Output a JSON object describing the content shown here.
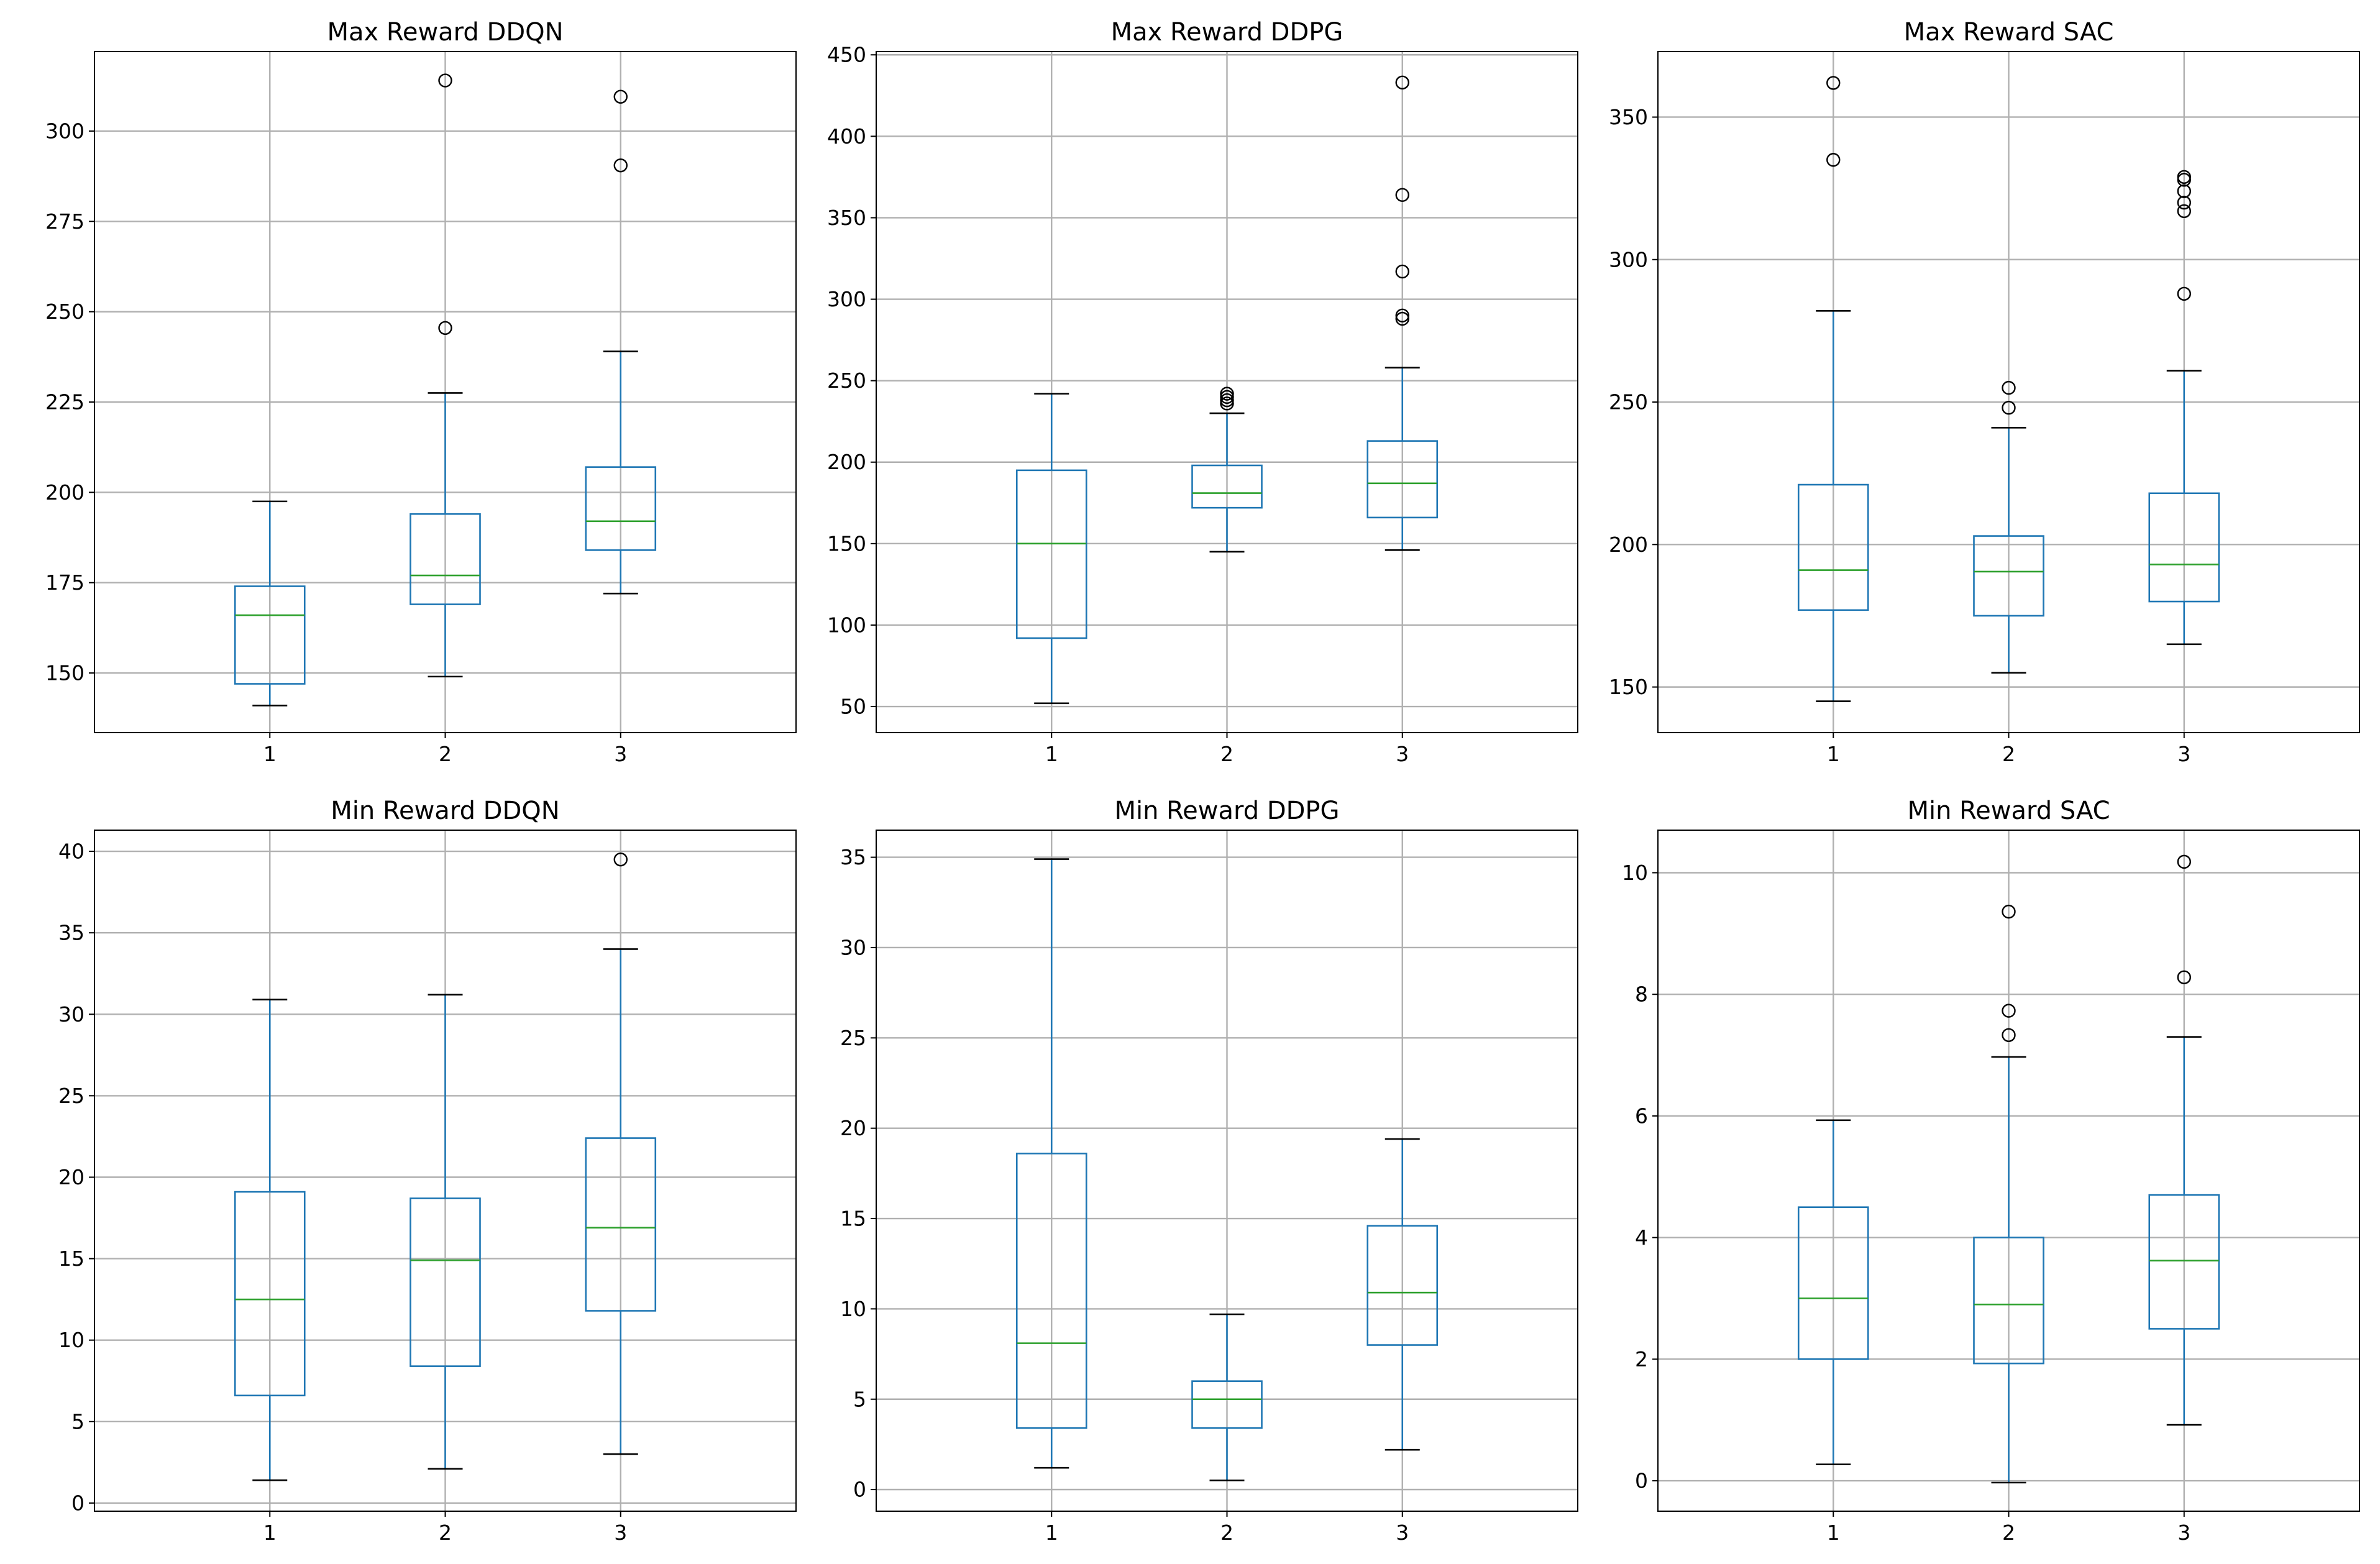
{
  "colors": {
    "box": "#1f77b4",
    "median": "#2ca02c",
    "whisker_cap": "#000000",
    "outlier": "#000000",
    "grid": "#b0b0b0",
    "background": "#ffffff"
  },
  "chart_data": [
    {
      "type": "box",
      "title": "Max Reward DDQN",
      "categories": [
        "1",
        "2",
        "3"
      ],
      "ylim": [
        133.5,
        322
      ],
      "yticks": [
        150,
        175,
        200,
        225,
        250,
        275,
        300
      ],
      "boxes": [
        {
          "label": "1",
          "whislo": 141,
          "q1": 147,
          "med": 166,
          "q3": 174,
          "whishi": 197.5,
          "fliers": []
        },
        {
          "label": "2",
          "whislo": 149,
          "q1": 169,
          "med": 177,
          "q3": 194,
          "whishi": 227.5,
          "fliers": [
            245.5,
            314
          ]
        },
        {
          "label": "3",
          "whislo": 172,
          "q1": 184,
          "med": 192,
          "q3": 207,
          "whishi": 239,
          "fliers": [
            290.5,
            309.5
          ]
        }
      ]
    },
    {
      "type": "box",
      "title": "Max Reward DDPG",
      "categories": [
        "1",
        "2",
        "3"
      ],
      "ylim": [
        34,
        452
      ],
      "yticks": [
        50,
        100,
        150,
        200,
        250,
        300,
        350,
        400,
        450
      ],
      "boxes": [
        {
          "label": "1",
          "whislo": 52,
          "q1": 92,
          "med": 150,
          "q3": 195,
          "whishi": 242,
          "fliers": []
        },
        {
          "label": "2",
          "whislo": 145,
          "q1": 172,
          "med": 181,
          "q3": 198,
          "whishi": 230,
          "fliers": [
            236,
            238,
            240,
            242
          ]
        },
        {
          "label": "3",
          "whislo": 146,
          "q1": 166,
          "med": 187,
          "q3": 213,
          "whishi": 258,
          "fliers": [
            288,
            290,
            317,
            364,
            433
          ]
        }
      ]
    },
    {
      "type": "box",
      "title": "Max Reward SAC",
      "categories": [
        "1",
        "2",
        "3"
      ],
      "ylim": [
        134,
        373
      ],
      "yticks": [
        150,
        200,
        250,
        300,
        350
      ],
      "boxes": [
        {
          "label": "1",
          "whislo": 145,
          "q1": 177,
          "med": 191,
          "q3": 221,
          "whishi": 282,
          "fliers": [
            335,
            362
          ]
        },
        {
          "label": "2",
          "whislo": 155,
          "q1": 175,
          "med": 190.5,
          "q3": 203,
          "whishi": 241,
          "fliers": [
            248,
            255
          ]
        },
        {
          "label": "3",
          "whislo": 165,
          "q1": 180,
          "med": 193,
          "q3": 218,
          "whishi": 261,
          "fliers": [
            288,
            317,
            320,
            324,
            328,
            329
          ]
        }
      ]
    },
    {
      "type": "box",
      "title": "Min Reward DDQN",
      "categories": [
        "1",
        "2",
        "3"
      ],
      "ylim": [
        -0.5,
        41.3
      ],
      "yticks": [
        0,
        5,
        10,
        15,
        20,
        25,
        30,
        35,
        40
      ],
      "boxes": [
        {
          "label": "1",
          "whislo": 1.4,
          "q1": 6.6,
          "med": 12.5,
          "q3": 19.1,
          "whishi": 30.9,
          "fliers": []
        },
        {
          "label": "2",
          "whislo": 2.1,
          "q1": 8.4,
          "med": 14.9,
          "q3": 18.7,
          "whishi": 31.2,
          "fliers": []
        },
        {
          "label": "3",
          "whislo": 3.0,
          "q1": 11.8,
          "med": 16.9,
          "q3": 22.4,
          "whishi": 34.0,
          "fliers": [
            39.5
          ]
        }
      ]
    },
    {
      "type": "box",
      "title": "Min Reward DDPG",
      "categories": [
        "1",
        "2",
        "3"
      ],
      "ylim": [
        -1.2,
        36.5
      ],
      "yticks": [
        0,
        5,
        10,
        15,
        20,
        25,
        30,
        35
      ],
      "boxes": [
        {
          "label": "1",
          "whislo": 1.2,
          "q1": 3.4,
          "med": 8.1,
          "q3": 18.6,
          "whishi": 34.9,
          "fliers": []
        },
        {
          "label": "2",
          "whislo": 0.5,
          "q1": 3.4,
          "med": 5.0,
          "q3": 6.0,
          "whishi": 9.7,
          "fliers": []
        },
        {
          "label": "3",
          "whislo": 2.2,
          "q1": 8.0,
          "med": 10.9,
          "q3": 14.6,
          "whishi": 19.4,
          "fliers": []
        }
      ]
    },
    {
      "type": "box",
      "title": "Min Reward SAC",
      "categories": [
        "1",
        "2",
        "3"
      ],
      "ylim": [
        -0.5,
        10.7
      ],
      "yticks": [
        0,
        2,
        4,
        6,
        8,
        10
      ],
      "boxes": [
        {
          "label": "1",
          "whislo": 0.27,
          "q1": 2.0,
          "med": 3.0,
          "q3": 4.5,
          "whishi": 5.93,
          "fliers": []
        },
        {
          "label": "2",
          "whislo": -0.03,
          "q1": 1.93,
          "med": 2.9,
          "q3": 4.0,
          "whishi": 6.97,
          "fliers": [
            7.33,
            7.73,
            9.36
          ]
        },
        {
          "label": "3",
          "whislo": 0.92,
          "q1": 2.5,
          "med": 3.62,
          "q3": 4.7,
          "whishi": 7.3,
          "fliers": [
            8.28,
            10.18
          ]
        }
      ]
    }
  ]
}
